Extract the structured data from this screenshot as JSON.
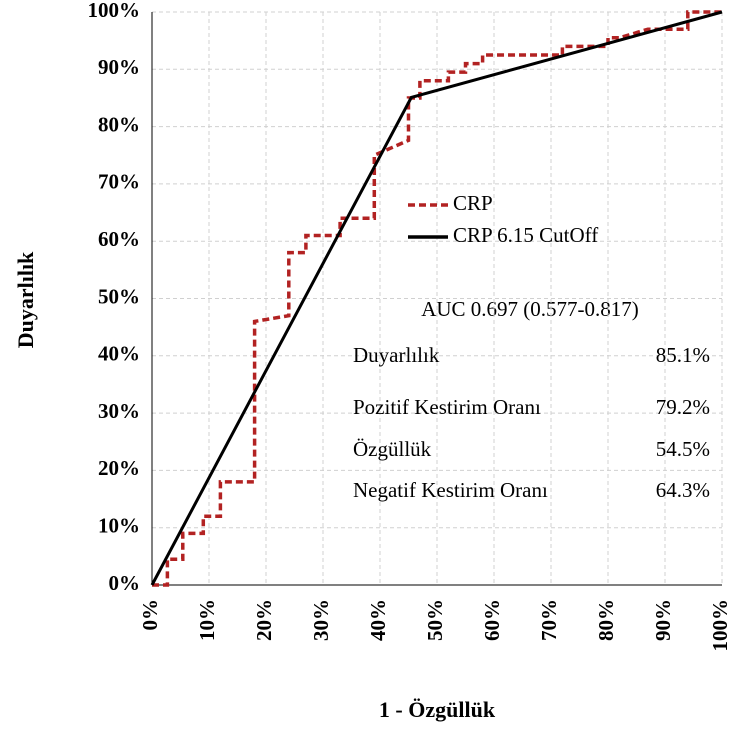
{
  "chart_data": {
    "type": "line",
    "x_label": "1 - Özgüllük",
    "y_label": "Duyarlılık",
    "xlim": [
      0,
      100
    ],
    "ylim": [
      0,
      100
    ],
    "xticks": [
      {
        "value": 0,
        "label": "0%"
      },
      {
        "value": 10,
        "label": "10%"
      },
      {
        "value": 20,
        "label": "20%"
      },
      {
        "value": 30,
        "label": "30%"
      },
      {
        "value": 40,
        "label": "40%"
      },
      {
        "value": 50,
        "label": "50%"
      },
      {
        "value": 60,
        "label": "60%"
      },
      {
        "value": 70,
        "label": "70%"
      },
      {
        "value": 80,
        "label": "80%"
      },
      {
        "value": 90,
        "label": "90%"
      },
      {
        "value": 100,
        "label": "100%"
      }
    ],
    "yticks": [
      {
        "value": 0,
        "label": "0%"
      },
      {
        "value": 10,
        "label": "10%"
      },
      {
        "value": 20,
        "label": "20%"
      },
      {
        "value": 30,
        "label": "30%"
      },
      {
        "value": 40,
        "label": "40%"
      },
      {
        "value": 50,
        "label": "50%"
      },
      {
        "value": 60,
        "label": "60%"
      },
      {
        "value": 70,
        "label": "70%"
      },
      {
        "value": 80,
        "label": "80%"
      },
      {
        "value": 90,
        "label": "90%"
      },
      {
        "value": 100,
        "label": "100%"
      }
    ],
    "grid": true,
    "series": [
      {
        "name": "CRP",
        "color": "#b22222",
        "line_style": "dashed",
        "x": [
          0,
          2.7,
          2.7,
          5.4,
          5.4,
          9,
          9,
          12,
          12,
          18,
          18,
          24,
          24,
          27,
          27,
          33,
          33,
          39,
          39,
          45,
          45,
          47,
          47,
          52,
          52,
          55,
          55,
          58,
          58,
          72,
          72,
          80,
          80,
          82,
          82,
          87,
          87,
          94,
          94,
          100
        ],
        "values": [
          0,
          0,
          4.5,
          4.5,
          9,
          9,
          12,
          12,
          18,
          18,
          46,
          47,
          58,
          58,
          61,
          61,
          64,
          64,
          75,
          77.6,
          85,
          85,
          88,
          88,
          89.5,
          89.5,
          91,
          91,
          92.5,
          92.5,
          94,
          94,
          95.5,
          95.5,
          95.5,
          97,
          97,
          97,
          100,
          100
        ]
      },
      {
        "name": "CRP 6.15 CutOff",
        "color": "#000000",
        "line_style": "solid",
        "x": [
          0,
          45.5,
          100
        ],
        "values": [
          0,
          85.1,
          100
        ]
      }
    ],
    "annotations": {
      "auc": "AUC 0.697 (0.577-0.817)",
      "stats": [
        {
          "label": "Duyarlılık",
          "value": "85.1%"
        },
        {
          "label": "Pozitif Kestirim Oranı",
          "value": "79.2%"
        },
        {
          "label": "Özgüllük",
          "value": "54.5%"
        },
        {
          "label": "Negatif Kestirim Oranı",
          "value": "64.3%"
        }
      ]
    }
  }
}
